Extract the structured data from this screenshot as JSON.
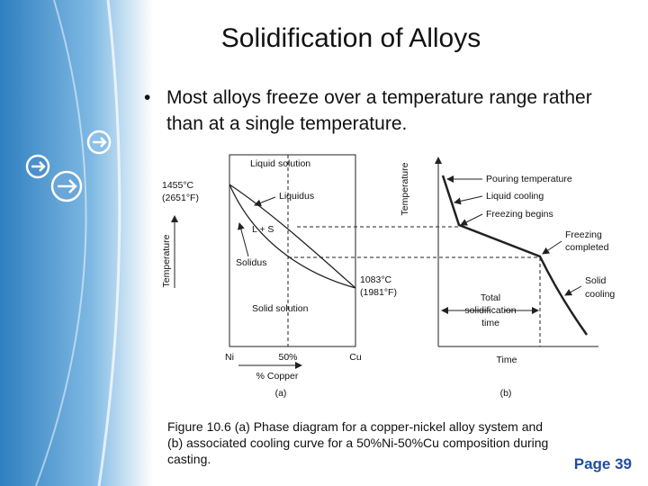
{
  "header": {
    "title": "Solidification of Alloys"
  },
  "bullets": [
    "Most alloys freeze over a temperature range rather than at a single temperature."
  ],
  "figure_a": {
    "axis_label": "Temperature",
    "melting_ni": [
      "1455°C",
      "(2651°F)"
    ],
    "liquid": "Liquid solution",
    "liquidus": "Liquidus",
    "two_phase": "L + S",
    "solidus": "Solidus",
    "melting_cu": [
      "1083°C",
      "(1981°F)"
    ],
    "solid": "Solid solution",
    "x_labels": [
      "Ni",
      "50%",
      "Cu"
    ],
    "x_axis": "% Copper",
    "panel": "(a)"
  },
  "figure_b": {
    "axis_label": "Temperature",
    "pouring": "Pouring temperature",
    "liquid_cooling": "Liquid cooling",
    "freezing_begins": "Freezing begins",
    "freezing_completed": [
      "Freezing",
      "completed"
    ],
    "solid_cooling": [
      "Solid",
      "cooling"
    ],
    "total_time": [
      "Total",
      "solidification",
      "time"
    ],
    "x_axis": "Time",
    "panel": "(b)"
  },
  "caption": [
    "Figure 10.6  (a) Phase diagram for a copper‑nickel alloy system and",
    "(b) associated cooling curve for a 50%Ni‑50%Cu composition during",
    "casting."
  ],
  "footer": {
    "page": "Page 39"
  }
}
